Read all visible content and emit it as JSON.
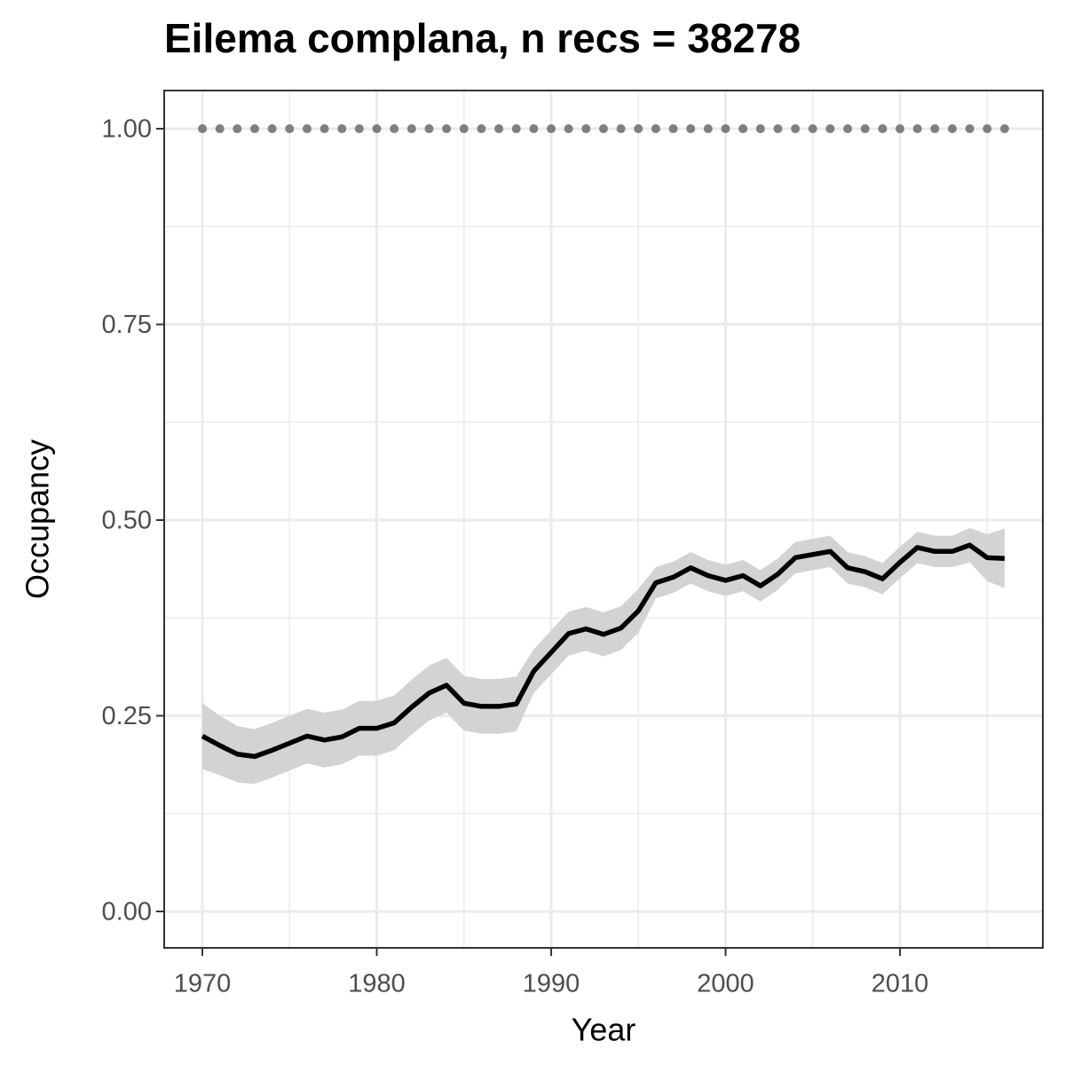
{
  "chart_data": {
    "type": "line",
    "title": "Eilema complana, n recs = 38278",
    "xlabel": "Year",
    "ylabel": "Occupancy",
    "x": [
      1970,
      1971,
      1972,
      1973,
      1974,
      1975,
      1976,
      1977,
      1978,
      1979,
      1980,
      1981,
      1982,
      1983,
      1984,
      1985,
      1986,
      1987,
      1988,
      1989,
      1990,
      1991,
      1992,
      1993,
      1994,
      1995,
      1996,
      1997,
      1998,
      1999,
      2000,
      2001,
      2002,
      2003,
      2004,
      2005,
      2006,
      2007,
      2008,
      2009,
      2010,
      2011,
      2012,
      2013,
      2014,
      2015,
      2016
    ],
    "series": [
      {
        "color": "#7f7f7f",
        "style": "dotted",
        "values": [
          1,
          1,
          1,
          1,
          1,
          1,
          1,
          1,
          1,
          1,
          1,
          1,
          1,
          1,
          1,
          1,
          1,
          1,
          1,
          1,
          1,
          1,
          1,
          1,
          1,
          1,
          1,
          1,
          1,
          1,
          1,
          1,
          1,
          1,
          1,
          1,
          1,
          1,
          1,
          1,
          1,
          1,
          1,
          1,
          1,
          1,
          1
        ]
      },
      {
        "color": "#000000",
        "style": "solid",
        "values": [
          0.224,
          0.212,
          0.201,
          0.198,
          0.206,
          0.215,
          0.224,
          0.219,
          0.223,
          0.234,
          0.234,
          0.241,
          0.261,
          0.279,
          0.289,
          0.266,
          0.262,
          0.262,
          0.265,
          0.307,
          0.331,
          0.355,
          0.361,
          0.354,
          0.362,
          0.384,
          0.42,
          0.427,
          0.439,
          0.429,
          0.423,
          0.429,
          0.416,
          0.431,
          0.452,
          0.456,
          0.46,
          0.439,
          0.434,
          0.425,
          0.446,
          0.465,
          0.46,
          0.46,
          0.468,
          0.452,
          0.451
        ],
        "ribbon": {
          "color": "#d3d3d3",
          "lower": [
            0.182,
            0.174,
            0.165,
            0.163,
            0.171,
            0.18,
            0.189,
            0.184,
            0.188,
            0.199,
            0.199,
            0.206,
            0.226,
            0.244,
            0.254,
            0.231,
            0.227,
            0.227,
            0.23,
            0.279,
            0.303,
            0.327,
            0.333,
            0.326,
            0.334,
            0.356,
            0.4,
            0.407,
            0.419,
            0.409,
            0.403,
            0.409,
            0.396,
            0.411,
            0.432,
            0.436,
            0.44,
            0.419,
            0.414,
            0.405,
            0.426,
            0.445,
            0.44,
            0.44,
            0.446,
            0.422,
            0.413
          ],
          "upper": [
            0.266,
            0.25,
            0.237,
            0.233,
            0.241,
            0.25,
            0.259,
            0.254,
            0.258,
            0.269,
            0.269,
            0.276,
            0.296,
            0.314,
            0.324,
            0.301,
            0.297,
            0.297,
            0.3,
            0.335,
            0.359,
            0.383,
            0.389,
            0.382,
            0.39,
            0.412,
            0.44,
            0.447,
            0.459,
            0.449,
            0.443,
            0.449,
            0.436,
            0.451,
            0.472,
            0.476,
            0.48,
            0.459,
            0.454,
            0.445,
            0.466,
            0.485,
            0.48,
            0.48,
            0.49,
            0.482,
            0.489
          ]
        }
      }
    ],
    "xlim": [
      1967.81,
      2018.19
    ],
    "ylim": [
      -0.0465,
      1.0488
    ],
    "xticks": [
      1970,
      1980,
      1990,
      2000,
      2010
    ],
    "yticks": [
      {
        "value": 0,
        "label": "0.00"
      },
      {
        "value": 0.25,
        "label": "0.25"
      },
      {
        "value": 0.5,
        "label": "0.50"
      },
      {
        "value": 0.75,
        "label": "0.75"
      },
      {
        "value": 1,
        "label": "1.00"
      }
    ],
    "xminor": [
      1975,
      1985,
      1995,
      2005,
      2015
    ],
    "yminor": [
      0.125,
      0.375,
      0.625,
      0.875
    ],
    "grid": true
  }
}
